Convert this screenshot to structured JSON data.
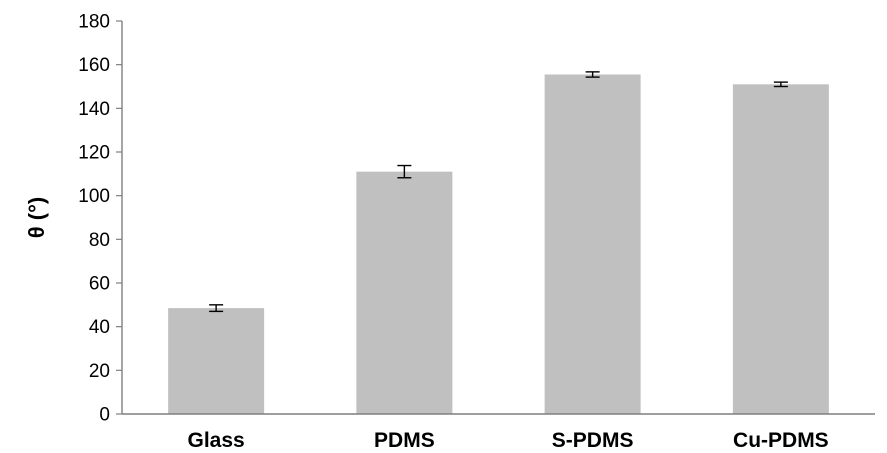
{
  "chart_data": {
    "type": "bar",
    "title": "",
    "xlabel": "",
    "ylabel": "θ (°)",
    "categories": [
      "Glass",
      "PDMS",
      "S-PDMS",
      "Cu-PDMS"
    ],
    "values": [
      48.5,
      111,
      155.5,
      151
    ],
    "errors": [
      1.5,
      2.8,
      1.2,
      1.0
    ],
    "ylim": [
      0,
      180
    ],
    "yticks": [
      0,
      20,
      40,
      60,
      80,
      100,
      120,
      140,
      160,
      180
    ],
    "grid": false,
    "legend": "none",
    "colors": {
      "bar": "#c0c0c0",
      "axis": "#7f7f7f",
      "error": "#000000"
    }
  }
}
